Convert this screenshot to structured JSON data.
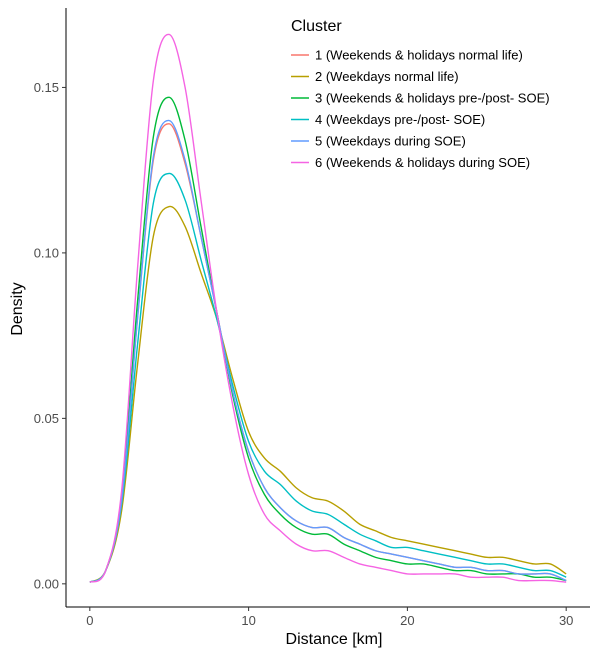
{
  "chart_data": {
    "type": "line",
    "title": "",
    "xlabel": "Distance [km]",
    "ylabel": "Density",
    "xlim": [
      -1.5,
      31.5
    ],
    "ylim": [
      -0.007,
      0.174
    ],
    "xticks": [
      0,
      10,
      20,
      30
    ],
    "xtick_labels": [
      "0",
      "10",
      "20",
      "30"
    ],
    "yticks": [
      0.0,
      0.05,
      0.1,
      0.15
    ],
    "ytick_labels": [
      "0.00",
      "0.05",
      "0.10",
      "0.15"
    ],
    "grid": false,
    "legend": {
      "title": "Cluster",
      "position": "top-right"
    },
    "x": [
      0,
      1,
      2,
      3,
      4,
      5,
      6,
      7,
      8,
      9,
      10,
      11,
      12,
      13,
      14,
      15,
      16,
      17,
      18,
      19,
      20,
      21,
      22,
      23,
      24,
      25,
      26,
      27,
      28,
      29,
      30
    ],
    "series": [
      {
        "name": "1 (Weekends & holidays normal life)",
        "color": "#F8766D",
        "values": [
          0.0005,
          0.004,
          0.025,
          0.08,
          0.128,
          0.139,
          0.127,
          0.105,
          0.082,
          0.058,
          0.04,
          0.029,
          0.023,
          0.019,
          0.017,
          0.017,
          0.014,
          0.012,
          0.01,
          0.009,
          0.008,
          0.007,
          0.006,
          0.005,
          0.005,
          0.004,
          0.004,
          0.003,
          0.003,
          0.003,
          0.001
        ]
      },
      {
        "name": "2 (Weekdays normal life)",
        "color": "#B79F00",
        "values": [
          0.0005,
          0.004,
          0.022,
          0.066,
          0.105,
          0.114,
          0.108,
          0.094,
          0.08,
          0.062,
          0.046,
          0.038,
          0.034,
          0.029,
          0.026,
          0.025,
          0.022,
          0.018,
          0.016,
          0.014,
          0.013,
          0.012,
          0.011,
          0.01,
          0.009,
          0.008,
          0.008,
          0.007,
          0.006,
          0.006,
          0.003
        ]
      },
      {
        "name": "3 (Weekends & holidays pre-/post- SOE)",
        "color": "#00BA38",
        "values": [
          0.0005,
          0.004,
          0.026,
          0.085,
          0.135,
          0.147,
          0.134,
          0.108,
          0.082,
          0.057,
          0.038,
          0.027,
          0.021,
          0.017,
          0.015,
          0.015,
          0.012,
          0.01,
          0.008,
          0.007,
          0.006,
          0.006,
          0.005,
          0.004,
          0.004,
          0.003,
          0.003,
          0.003,
          0.002,
          0.002,
          0.001
        ]
      },
      {
        "name": "4 (Weekdays pre-/post- SOE)",
        "color": "#00BFC4",
        "values": [
          0.0005,
          0.004,
          0.024,
          0.072,
          0.115,
          0.124,
          0.116,
          0.098,
          0.08,
          0.06,
          0.043,
          0.034,
          0.03,
          0.025,
          0.022,
          0.021,
          0.018,
          0.015,
          0.013,
          0.011,
          0.011,
          0.01,
          0.009,
          0.008,
          0.007,
          0.006,
          0.006,
          0.005,
          0.004,
          0.004,
          0.002
        ]
      },
      {
        "name": "5 (Weekdays during SOE)",
        "color": "#619CFF",
        "values": [
          0.0005,
          0.004,
          0.025,
          0.08,
          0.129,
          0.14,
          0.128,
          0.105,
          0.082,
          0.058,
          0.04,
          0.029,
          0.023,
          0.019,
          0.017,
          0.017,
          0.014,
          0.012,
          0.01,
          0.009,
          0.008,
          0.007,
          0.006,
          0.005,
          0.005,
          0.004,
          0.004,
          0.003,
          0.003,
          0.003,
          0.001
        ]
      },
      {
        "name": "6 (Weekends & holidays during SOE)",
        "color": "#F564E3",
        "values": [
          0.0005,
          0.004,
          0.028,
          0.095,
          0.152,
          0.166,
          0.15,
          0.116,
          0.082,
          0.054,
          0.033,
          0.021,
          0.016,
          0.012,
          0.01,
          0.01,
          0.008,
          0.006,
          0.005,
          0.004,
          0.003,
          0.003,
          0.003,
          0.003,
          0.002,
          0.002,
          0.002,
          0.001,
          0.001,
          0.001,
          0.0005
        ]
      }
    ]
  }
}
